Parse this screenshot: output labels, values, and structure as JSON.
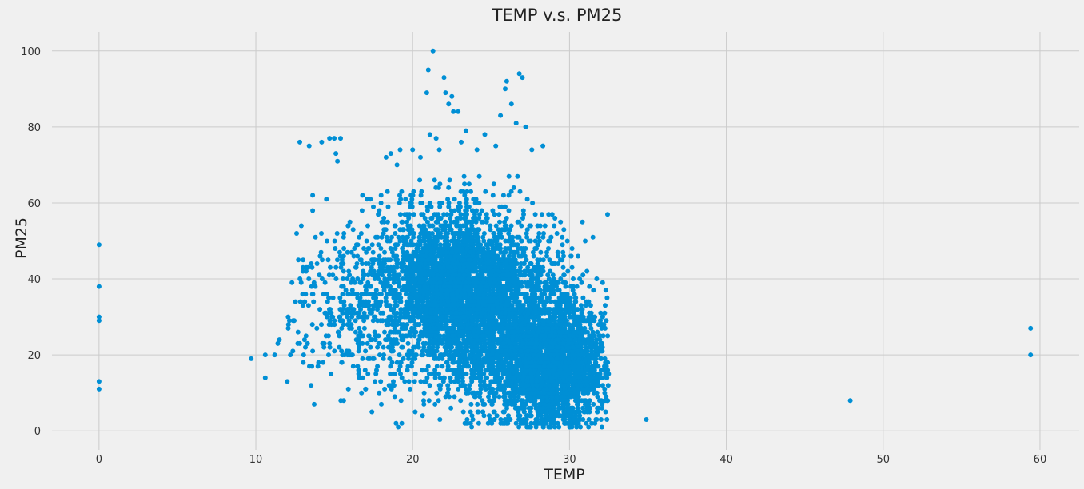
{
  "chart_data": {
    "type": "scatter",
    "title": "TEMP v.s. PM25",
    "xlabel": "TEMP",
    "ylabel": "PM25",
    "xlim": [
      -3,
      62.5
    ],
    "ylim": [
      -5,
      105
    ],
    "xticks": [
      0,
      10,
      20,
      30,
      40,
      50,
      60
    ],
    "yticks": [
      0,
      20,
      40,
      60,
      80,
      100
    ],
    "grid": true,
    "point_color": "#008fd5",
    "background": "#f0f0f0",
    "point_count_note": "dense cloud of several thousand observations",
    "points": [
      [
        0,
        49
      ],
      [
        0,
        38
      ],
      [
        0,
        30
      ],
      [
        0,
        29
      ],
      [
        0,
        13
      ],
      [
        0,
        11
      ],
      [
        9.7,
        19
      ],
      [
        10.6,
        14
      ],
      [
        10.6,
        20
      ],
      [
        11.2,
        20
      ],
      [
        11.4,
        23
      ],
      [
        11.5,
        24
      ],
      [
        12.0,
        13
      ],
      [
        12.2,
        20
      ],
      [
        12.3,
        39
      ],
      [
        12.6,
        52
      ],
      [
        12.8,
        76
      ],
      [
        12.9,
        54
      ],
      [
        13.0,
        42
      ],
      [
        13.1,
        24
      ],
      [
        13.2,
        25
      ],
      [
        13.4,
        75
      ],
      [
        13.6,
        28
      ],
      [
        13.8,
        51
      ],
      [
        14.0,
        18
      ],
      [
        14.2,
        76
      ],
      [
        14.5,
        61
      ],
      [
        14.7,
        77
      ],
      [
        15.0,
        77
      ],
      [
        15.1,
        73
      ],
      [
        15.2,
        71
      ],
      [
        15.4,
        77
      ],
      [
        15.6,
        8
      ],
      [
        16.0,
        55
      ],
      [
        16.1,
        47
      ],
      [
        16.4,
        43
      ],
      [
        16.8,
        62
      ],
      [
        17.0,
        11
      ],
      [
        17.3,
        61
      ],
      [
        17.6,
        13
      ],
      [
        18.0,
        7
      ],
      [
        18.3,
        72
      ],
      [
        18.6,
        73
      ],
      [
        19.0,
        70
      ],
      [
        19.2,
        74
      ],
      [
        20.0,
        74
      ],
      [
        20.5,
        72
      ],
      [
        21.0,
        95
      ],
      [
        21.3,
        100
      ],
      [
        21.1,
        78
      ],
      [
        20.9,
        89
      ],
      [
        21.5,
        77
      ],
      [
        21.7,
        74
      ],
      [
        22.0,
        93
      ],
      [
        22.1,
        89
      ],
      [
        22.3,
        86
      ],
      [
        22.5,
        88
      ],
      [
        22.6,
        84
      ],
      [
        22.9,
        84
      ],
      [
        23.1,
        76
      ],
      [
        23.4,
        79
      ],
      [
        24.1,
        74
      ],
      [
        24.6,
        78
      ],
      [
        25.3,
        75
      ],
      [
        25.6,
        83
      ],
      [
        25.9,
        90
      ],
      [
        26.0,
        92
      ],
      [
        26.3,
        86
      ],
      [
        26.6,
        81
      ],
      [
        26.8,
        94
      ],
      [
        27.0,
        93
      ],
      [
        27.2,
        80
      ],
      [
        27.6,
        74
      ],
      [
        28.3,
        75
      ],
      [
        34.9,
        3
      ],
      [
        47.9,
        8
      ],
      [
        59.4,
        27
      ],
      [
        59.4,
        20
      ]
    ],
    "clusters": [
      {
        "cx": 22.5,
        "cy": 38,
        "sx": 2.3,
        "sy": 11,
        "n": 2600
      },
      {
        "cx": 29.0,
        "cy": 17,
        "sx": 1.7,
        "sy": 8,
        "n": 2200
      },
      {
        "cx": 26.0,
        "cy": 29,
        "sx": 2.4,
        "sy": 12,
        "n": 1600
      },
      {
        "cx": 17.5,
        "cy": 34,
        "sx": 1.9,
        "sy": 11,
        "n": 300
      },
      {
        "cx": 14.5,
        "cy": 30,
        "sx": 1.4,
        "sy": 10,
        "n": 110
      }
    ]
  }
}
